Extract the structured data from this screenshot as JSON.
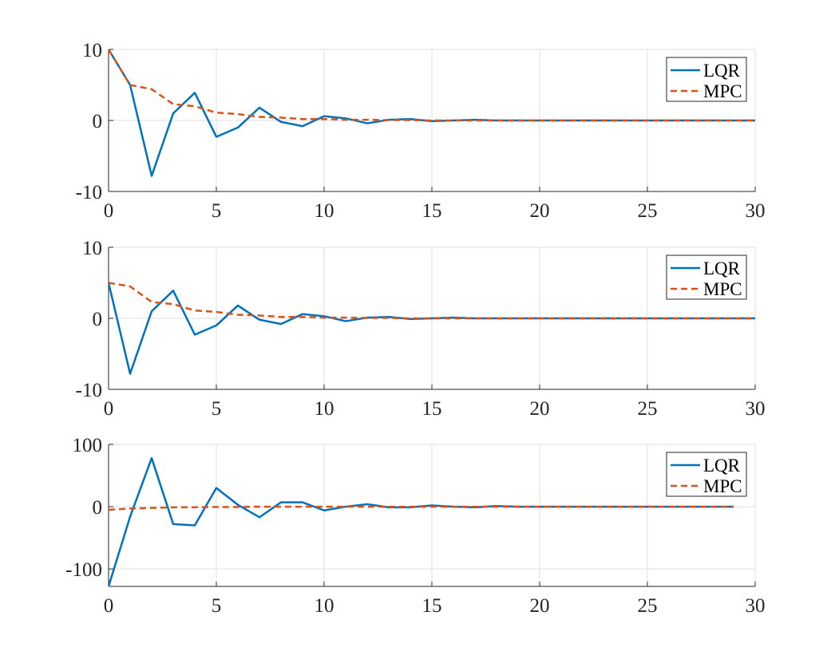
{
  "chart_data": [
    {
      "type": "line",
      "title": "",
      "xlabel": "",
      "ylabel": "",
      "xlim": [
        0,
        30
      ],
      "ylim": [
        -10,
        10
      ],
      "xticks": [
        0,
        5,
        10,
        15,
        20,
        25,
        30
      ],
      "yticks": [
        -10,
        0,
        10
      ],
      "grid": true,
      "legend": "top-right",
      "series": [
        {
          "name": "LQR",
          "color": "#0072bd",
          "style": "solid",
          "x": [
            0,
            1,
            2,
            3,
            4,
            5,
            6,
            7,
            8,
            9,
            10,
            11,
            12,
            13,
            14,
            15,
            16,
            17,
            18,
            19,
            20,
            21,
            22,
            23,
            24,
            25,
            26,
            27,
            28,
            29,
            30
          ],
          "y": [
            10,
            5,
            -7.8,
            1,
            3.9,
            -2.3,
            -1,
            1.8,
            -0.2,
            -0.8,
            0.6,
            0.3,
            -0.4,
            0.1,
            0.2,
            -0.1,
            0,
            0.1,
            0,
            0,
            0,
            0,
            0,
            0,
            0,
            0,
            0,
            0,
            0,
            0,
            0
          ]
        },
        {
          "name": "MPC",
          "color": "#d95319",
          "style": "dashed",
          "x": [
            0,
            1,
            2,
            3,
            4,
            5,
            6,
            7,
            8,
            9,
            10,
            11,
            12,
            13,
            14,
            15,
            16,
            17,
            18,
            19,
            20,
            21,
            22,
            23,
            24,
            25,
            26,
            27,
            28,
            29,
            30
          ],
          "y": [
            10,
            5,
            4.4,
            2.3,
            2,
            1.1,
            0.9,
            0.5,
            0.4,
            0.2,
            0.2,
            0.1,
            0.1,
            0.05,
            0.05,
            0,
            0,
            0,
            0,
            0,
            0,
            0,
            0,
            0,
            0,
            0,
            0,
            0,
            0,
            0,
            0
          ]
        }
      ]
    },
    {
      "type": "line",
      "title": "",
      "xlabel": "",
      "ylabel": "",
      "xlim": [
        0,
        30
      ],
      "ylim": [
        -10,
        10
      ],
      "xticks": [
        0,
        5,
        10,
        15,
        20,
        25,
        30
      ],
      "yticks": [
        -10,
        0,
        10
      ],
      "grid": true,
      "legend": "top-right",
      "series": [
        {
          "name": "LQR",
          "color": "#0072bd",
          "style": "solid",
          "x": [
            0,
            1,
            2,
            3,
            4,
            5,
            6,
            7,
            8,
            9,
            10,
            11,
            12,
            13,
            14,
            15,
            16,
            17,
            18,
            19,
            20,
            21,
            22,
            23,
            24,
            25,
            26,
            27,
            28,
            29,
            30
          ],
          "y": [
            5,
            -7.8,
            1,
            3.9,
            -2.3,
            -1,
            1.8,
            -0.2,
            -0.8,
            0.6,
            0.3,
            -0.4,
            0.1,
            0.2,
            -0.1,
            0,
            0.1,
            0,
            0,
            0,
            0,
            0,
            0,
            0,
            0,
            0,
            0,
            0,
            0,
            0,
            0
          ]
        },
        {
          "name": "MPC",
          "color": "#d95319",
          "style": "dashed",
          "x": [
            0,
            1,
            2,
            3,
            4,
            5,
            6,
            7,
            8,
            9,
            10,
            11,
            12,
            13,
            14,
            15,
            16,
            17,
            18,
            19,
            20,
            21,
            22,
            23,
            24,
            25,
            26,
            27,
            28,
            29,
            30
          ],
          "y": [
            5,
            4.5,
            2.3,
            2,
            1.1,
            0.9,
            0.5,
            0.4,
            0.2,
            0.2,
            0.1,
            0.1,
            0.05,
            0.05,
            0,
            0,
            0,
            0,
            0,
            0,
            0,
            0,
            0,
            0,
            0,
            0,
            0,
            0,
            0,
            0,
            0
          ]
        }
      ]
    },
    {
      "type": "line",
      "title": "",
      "xlabel": "",
      "ylabel": "",
      "xlim": [
        0,
        30
      ],
      "ylim": [
        -128,
        100
      ],
      "xticks": [
        0,
        5,
        10,
        15,
        20,
        25,
        30
      ],
      "yticks": [
        -100,
        0,
        100
      ],
      "grid": true,
      "legend": "top-right",
      "series": [
        {
          "name": "LQR",
          "color": "#0072bd",
          "style": "solid",
          "x": [
            0,
            1,
            2,
            3,
            4,
            5,
            6,
            7,
            8,
            9,
            10,
            11,
            12,
            13,
            14,
            15,
            16,
            17,
            18,
            19,
            20,
            21,
            22,
            23,
            24,
            25,
            26,
            27,
            28,
            29
          ],
          "y": [
            -128,
            -16,
            78,
            -28,
            -30,
            30,
            3,
            -17,
            7,
            7,
            -6,
            0,
            4,
            -1,
            -1,
            2,
            0,
            -1,
            1,
            0,
            0,
            0,
            0,
            0,
            0,
            0,
            0,
            0,
            0,
            0
          ]
        },
        {
          "name": "MPC",
          "color": "#d95319",
          "style": "dashed",
          "x": [
            0,
            1,
            2,
            3,
            4,
            5,
            6,
            7,
            8,
            9,
            10,
            11,
            12,
            13,
            14,
            15,
            16,
            17,
            18,
            19,
            20,
            21,
            22,
            23,
            24,
            25,
            26,
            27,
            28,
            29
          ],
          "y": [
            -5,
            -3,
            -2,
            -1,
            -1,
            -0.5,
            -0.5,
            0,
            0,
            0,
            0,
            0,
            0,
            0,
            0,
            0,
            0,
            0,
            0,
            0,
            0,
            0,
            0,
            0,
            0,
            0,
            0,
            0,
            0,
            0
          ]
        }
      ]
    }
  ]
}
